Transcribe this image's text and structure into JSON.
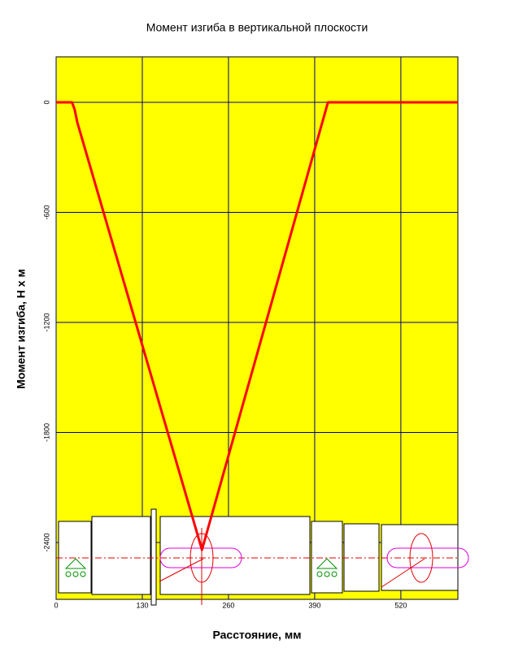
{
  "chart_data": {
    "type": "line",
    "title": "Момент изгиба в вертикальной плоскости",
    "x_label": "Расстояние, мм",
    "y_label": "Момент изгиба, Н х м",
    "x": [
      0,
      24,
      28,
      32,
      220,
      410,
      606
    ],
    "series": [
      {
        "name": "Момент изгиба",
        "color": "#ff0000",
        "values": [
          0,
          0,
          -40,
          -110,
          -2440,
          0,
          0
        ]
      }
    ],
    "xlim": [
      0,
      606
    ],
    "xticks": [
      0,
      130,
      260,
      390,
      520
    ],
    "ylim": [
      -2710,
      248
    ],
    "yticks": [
      0,
      -600,
      -1200,
      -1800,
      -2400
    ],
    "grid": true,
    "background": "#ffff00",
    "grid_color": "#000080"
  }
}
